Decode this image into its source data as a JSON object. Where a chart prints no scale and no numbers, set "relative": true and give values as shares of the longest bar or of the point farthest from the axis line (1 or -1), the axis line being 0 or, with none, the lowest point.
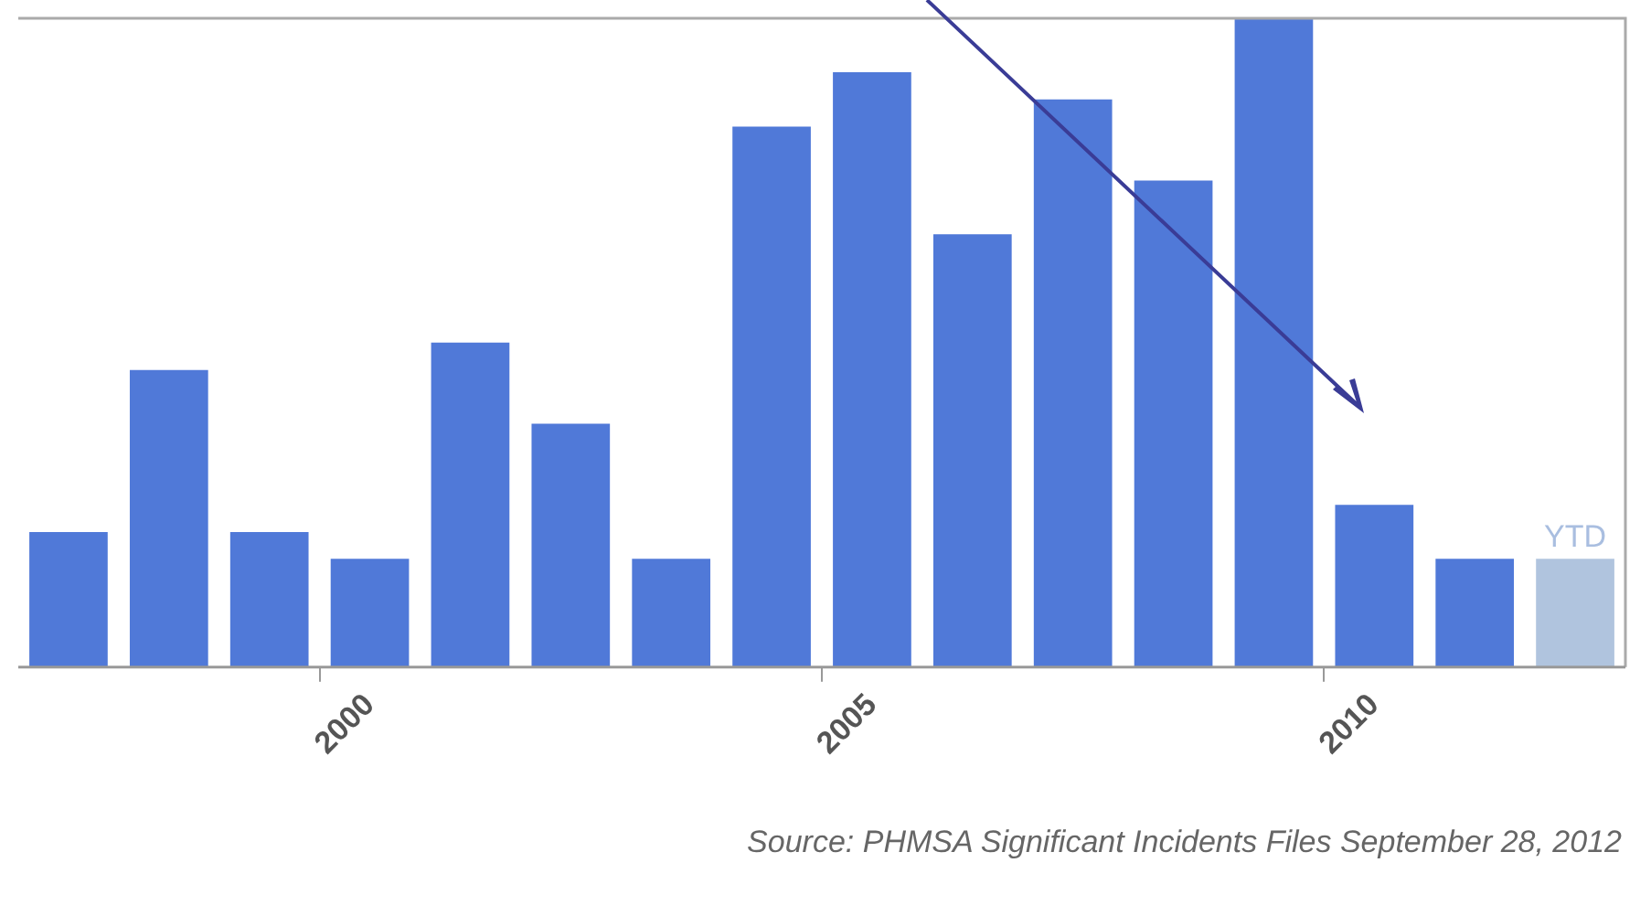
{
  "chart_data": {
    "type": "bar",
    "relative": true,
    "categories": [
      null,
      null,
      null,
      "2000",
      null,
      null,
      null,
      null,
      "2005",
      null,
      null,
      null,
      null,
      "2010",
      null,
      null
    ],
    "values": [
      0.208,
      0.458,
      0.208,
      0.167,
      0.5,
      0.375,
      0.167,
      0.833,
      0.917,
      0.667,
      0.875,
      0.75,
      1,
      0.25,
      0.167,
      0.167
    ],
    "colors": [
      "#5079d8",
      "#5079d8",
      "#5079d8",
      "#5079d8",
      "#5079d8",
      "#5079d8",
      "#5079d8",
      "#5079d8",
      "#5079d8",
      "#5079d8",
      "#5079d8",
      "#5079d8",
      "#5079d8",
      "#5079d8",
      "#5079d8",
      "#b0c4de"
    ],
    "annotations": [
      {
        "text": "YTD",
        "y": 0.167
      },
      "Source: PHMSA Significant Incidents Files September 28, 2012"
    ],
    "grid": false,
    "legend": false
  }
}
